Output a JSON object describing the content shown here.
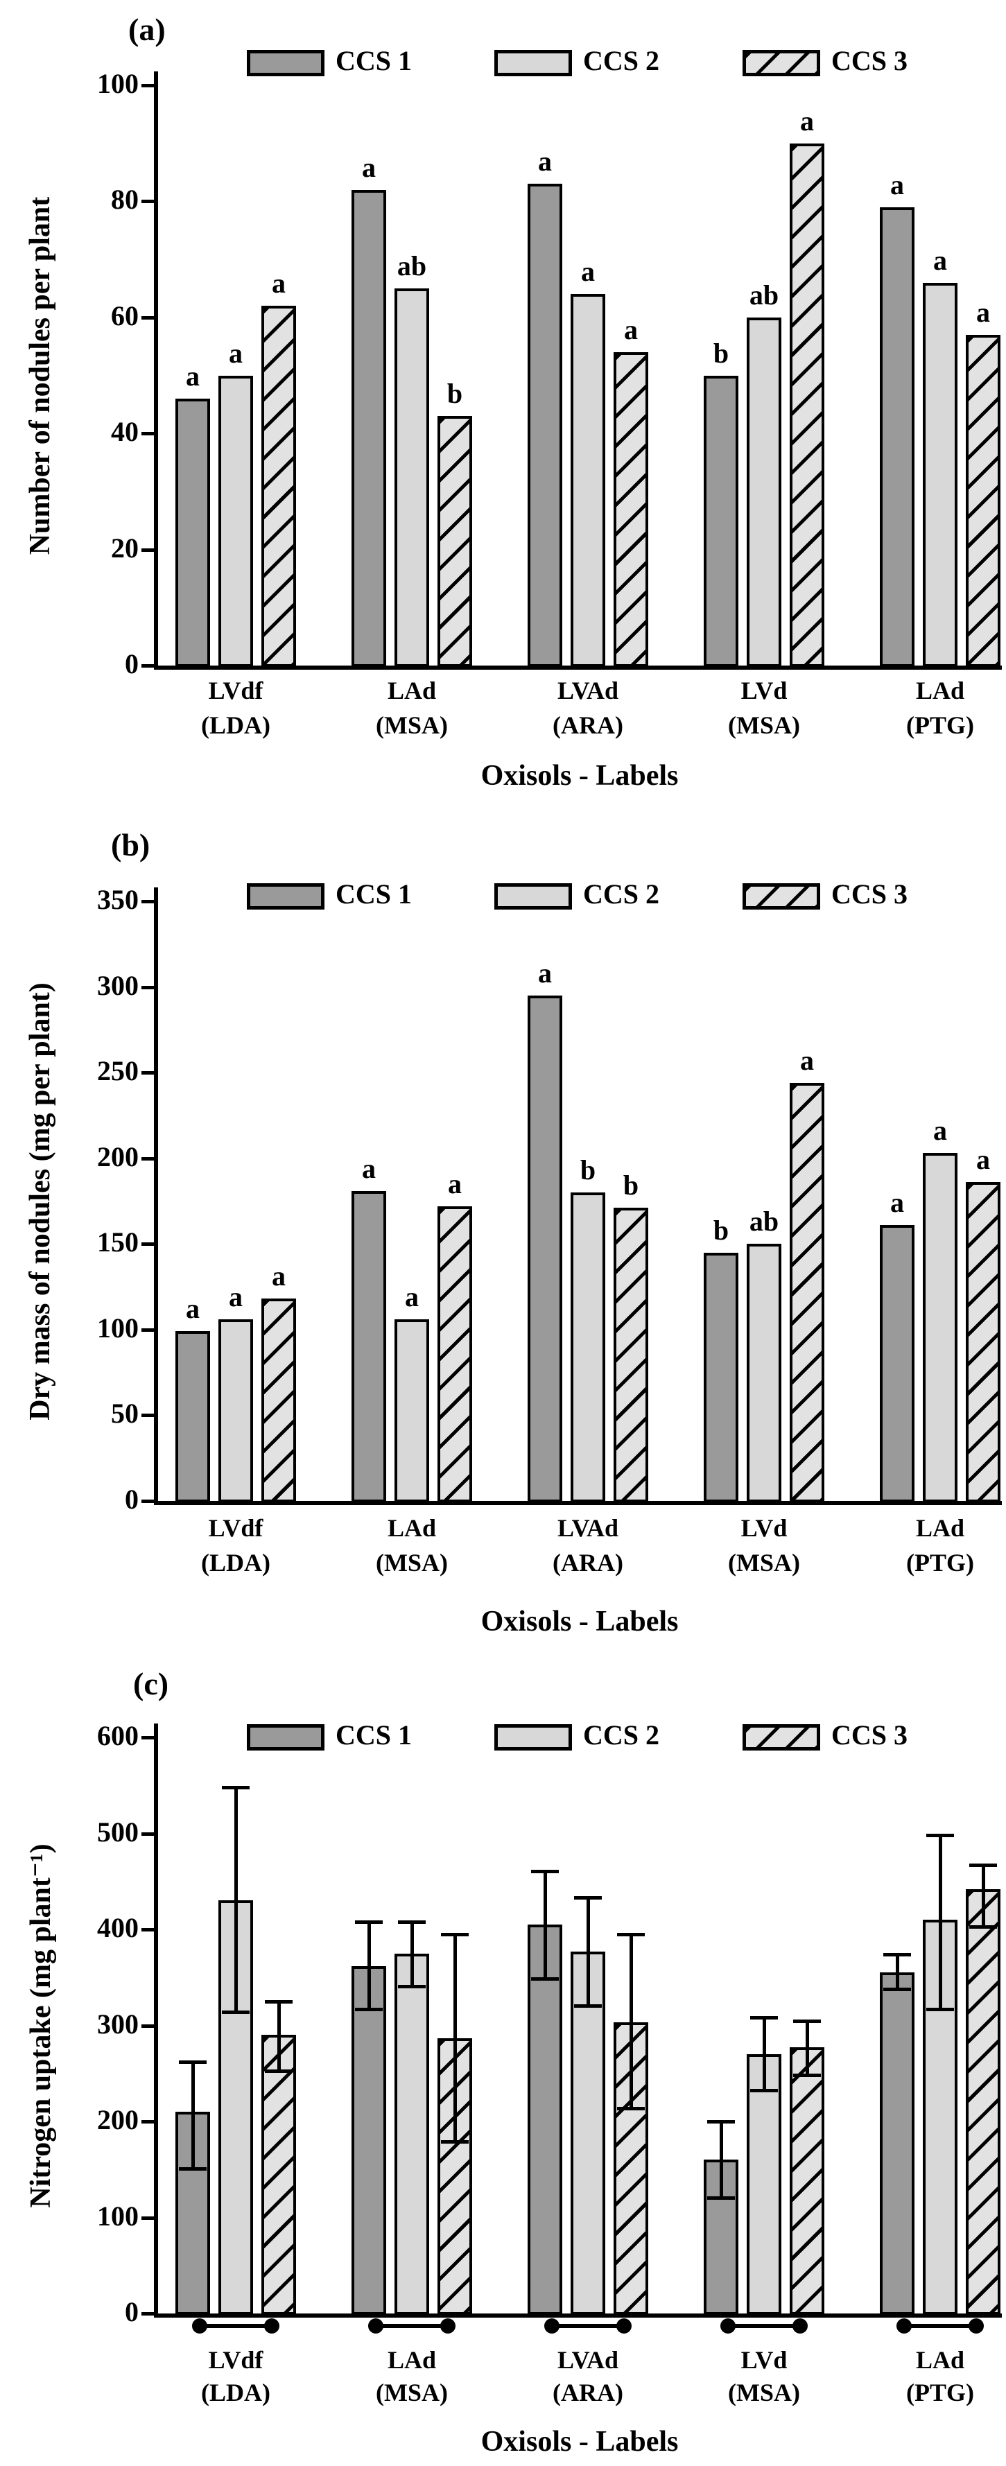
{
  "colors": {
    "background": "#ffffff",
    "outline": "#000000",
    "hatch_line": "#000000",
    "series_fill": [
      "#9a9a9a",
      "#d8d8d8",
      "#e2e2e2"
    ]
  },
  "legend": {
    "items": [
      "CCS 1",
      "CCS 2",
      "CCS 3"
    ],
    "styles": [
      "solid-dark",
      "solid-light",
      "hatched"
    ]
  },
  "xlabel": "Oxisols - Labels",
  "categories": [
    [
      "LVdf",
      "(LDA)"
    ],
    [
      "LAd",
      "(MSA)"
    ],
    [
      "LVAd",
      "(ARA)"
    ],
    [
      "LVd",
      "(MSA)"
    ],
    [
      "LAd",
      "(PTG)"
    ]
  ],
  "chart_data": [
    {
      "id": "a",
      "panel_label": "(a)",
      "type": "bar",
      "title": "",
      "ylabel": "Number of nodules per plant",
      "xlabel": "Oxisols - Labels",
      "ylim": [
        0,
        100
      ],
      "ytick_step": 20,
      "grid": false,
      "legend_position": "top-inside",
      "categories": [
        "LVdf (LDA)",
        "LAd (MSA)",
        "LVAd (ARA)",
        "LVd (MSA)",
        "LAd (PTG)"
      ],
      "series": [
        {
          "name": "CCS 1",
          "values": [
            46,
            82,
            83,
            50,
            79
          ],
          "sig_letters": [
            "a",
            "a",
            "a",
            "b",
            "a"
          ]
        },
        {
          "name": "CCS 2",
          "values": [
            50,
            65,
            64,
            60,
            66
          ],
          "sig_letters": [
            "a",
            "ab",
            "a",
            "ab",
            "a"
          ]
        },
        {
          "name": "CCS 3",
          "values": [
            62,
            43,
            54,
            90,
            57
          ],
          "sig_letters": [
            "a",
            "b",
            "a",
            "a",
            "a"
          ]
        }
      ]
    },
    {
      "id": "b",
      "panel_label": "(b)",
      "type": "bar",
      "title": "",
      "ylabel": "Dry mass of nodules (mg per plant)",
      "xlabel": "Oxisols - Labels",
      "ylim": [
        0,
        350
      ],
      "ytick_step": 50,
      "grid": false,
      "legend_position": "top-inside",
      "categories": [
        "LVdf (LDA)",
        "LAd (MSA)",
        "LVAd (ARA)",
        "LVd (MSA)",
        "LAd (PTG)"
      ],
      "series": [
        {
          "name": "CCS 1",
          "values": [
            99,
            181,
            295,
            145,
            161
          ],
          "sig_letters": [
            "a",
            "a",
            "a",
            "b",
            "a"
          ]
        },
        {
          "name": "CCS 2",
          "values": [
            106,
            106,
            180,
            150,
            203
          ],
          "sig_letters": [
            "a",
            "a",
            "b",
            "ab",
            "a"
          ]
        },
        {
          "name": "CCS 3",
          "values": [
            118,
            172,
            171,
            244,
            186
          ],
          "sig_letters": [
            "a",
            "a",
            "b",
            "a",
            "a"
          ]
        }
      ]
    },
    {
      "id": "c",
      "panel_label": "(c)",
      "type": "bar",
      "title": "",
      "ylabel": "Nitrogen uptake (mg plant⁻¹)",
      "xlabel": "Oxisols - Labels",
      "ylim": [
        0,
        600
      ],
      "ytick_step": 100,
      "grid": false,
      "legend_position": "top-inside",
      "group_axis_markers": true,
      "categories": [
        "LVdf (LDA)",
        "LAd (MSA)",
        "LVAd (ARA)",
        "LVd (MSA)",
        "LAd (PTG)"
      ],
      "series": [
        {
          "name": "CCS 1",
          "values": [
            210,
            362,
            405,
            160,
            355
          ],
          "error_low": [
            150,
            316,
            348,
            120,
            337
          ],
          "error_high": [
            262,
            408,
            461,
            200,
            374
          ]
        },
        {
          "name": "CCS 2",
          "values": [
            430,
            375,
            377,
            270,
            410
          ],
          "error_low": [
            313,
            340,
            320,
            232,
            316
          ],
          "error_high": [
            548,
            408,
            433,
            308,
            498
          ]
        },
        {
          "name": "CCS 3",
          "values": [
            290,
            287,
            303,
            277,
            442
          ],
          "error_low": [
            252,
            178,
            213,
            248,
            402
          ],
          "error_high": [
            325,
            395,
            395,
            305,
            467
          ]
        }
      ]
    }
  ]
}
